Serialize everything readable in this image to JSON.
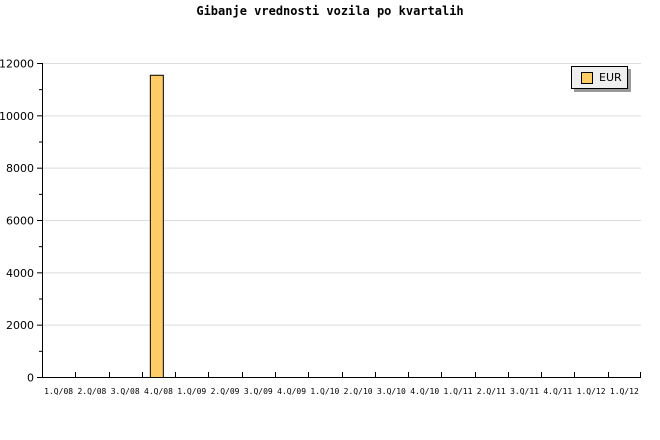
{
  "chart_data": {
    "type": "bar",
    "title": "Gibanje vrednosti vozila po kvartalih",
    "xlabel": "",
    "ylabel": "",
    "ylim": [
      0,
      12000
    ],
    "yticks": [
      0,
      2000,
      4000,
      6000,
      8000,
      10000,
      12000
    ],
    "grid": true,
    "legend_position": "top-right",
    "categories": [
      "1.Q/08",
      "2.Q/08",
      "3.Q/08",
      "4.Q/08",
      "1.Q/09",
      "2.Q/09",
      "3.Q/09",
      "4.Q/09",
      "1.Q/10",
      "2.Q/10",
      "3.Q/10",
      "4.Q/10",
      "1.Q/11",
      "2.Q/11",
      "3.Q/11",
      "4.Q/11",
      "1.Q/12",
      "1.Q/12"
    ],
    "series": [
      {
        "name": "EUR",
        "color": "#ffcc66",
        "values": [
          0,
          0,
          0,
          11550,
          0,
          0,
          0,
          0,
          0,
          0,
          0,
          0,
          0,
          0,
          0,
          0,
          0,
          0
        ]
      }
    ]
  }
}
